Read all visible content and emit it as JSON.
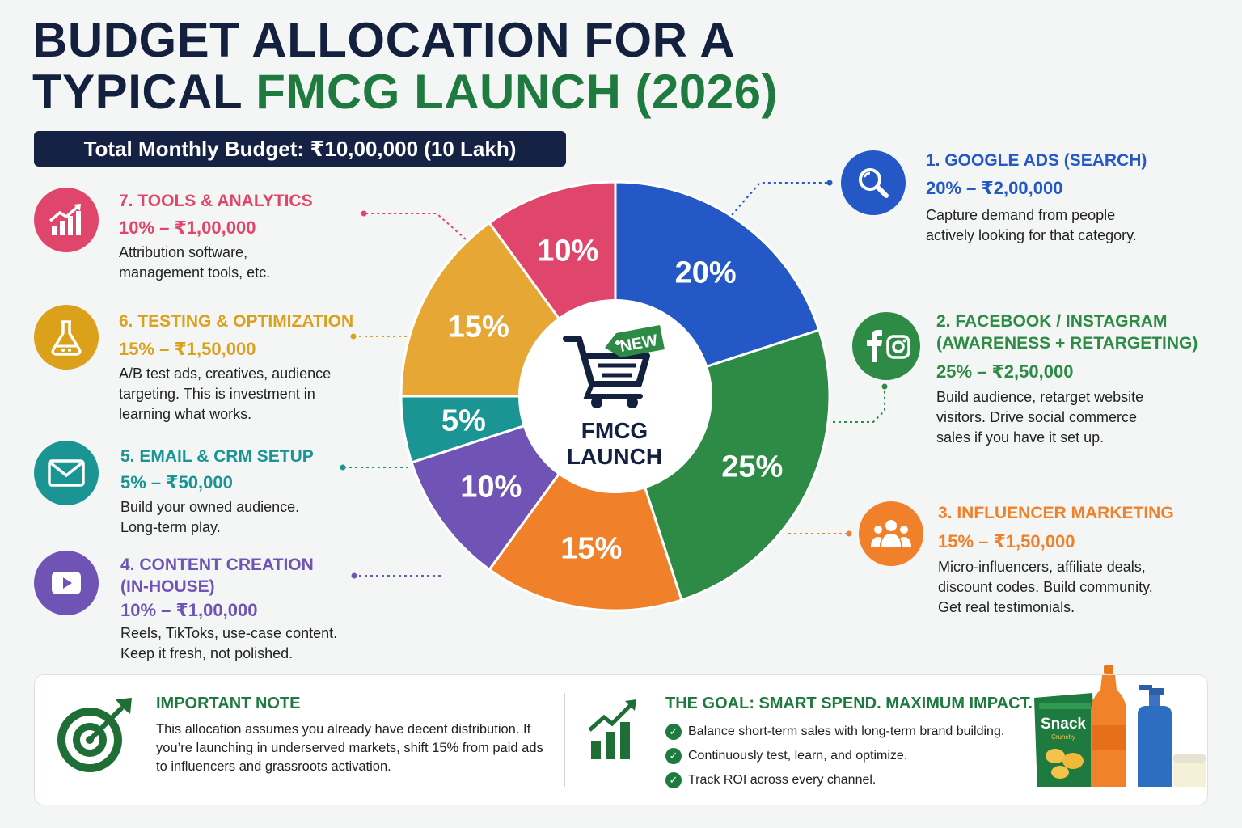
{
  "title": {
    "line1": "BUDGET ALLOCATION FOR A",
    "line2_prefix": "TYPICAL ",
    "line2_highlight": "FMCG LAUNCH (2026)"
  },
  "budget_bar": "Total Monthly Budget: ₹10,00,000 (10 Lakh)",
  "center": {
    "tag": "NEW",
    "line1": "FMCG",
    "line2": "LAUNCH"
  },
  "categories": {
    "google": {
      "title": "1. GOOGLE ADS (SEARCH)",
      "amount": "20% – ₹2,00,000",
      "desc": [
        "Capture demand from people",
        "actively looking for that category."
      ],
      "color": "#2458c6",
      "icon": "search-icon"
    },
    "facebook": {
      "title": [
        "2. FACEBOOK / INSTAGRAM",
        "(AWARENESS + RETARGETING)"
      ],
      "amount": "25% – ₹2,50,000",
      "desc": [
        "Build audience, retarget website",
        "visitors. Drive social commerce",
        "sales if you have it set up."
      ],
      "color": "#2e8b46",
      "icon": "facebook-instagram-icon"
    },
    "influencer": {
      "title": "3. INFLUENCER MARKETING",
      "amount": "15% – ₹1,50,000",
      "desc": [
        "Micro-influencers, affiliate deals,",
        "discount codes. Build community.",
        "Get real testimonials."
      ],
      "color": "#f0802a",
      "icon": "people-icon"
    },
    "content": {
      "title": [
        "4. CONTENT CREATION",
        "(IN-HOUSE)"
      ],
      "amount": "10% – ₹1,00,000",
      "desc": [
        "Reels, TikToks, use-case content.",
        "Keep it fresh, not polished."
      ],
      "color": "#6f54b5",
      "icon": "video-play-icon"
    },
    "email": {
      "title": "5. EMAIL & CRM SETUP",
      "amount": "5% – ₹50,000",
      "desc": [
        "Build your owned audience.",
        "Long-term play."
      ],
      "color": "#1b9593",
      "icon": "envelope-icon"
    },
    "testing": {
      "title": "6. TESTING & OPTIMIZATION",
      "amount": "15% – ₹1,50,000",
      "desc": [
        "A/B test ads, creatives, audience",
        "targeting. This is investment in",
        "learning what works."
      ],
      "color": "#dba11b",
      "icon": "flask-icon"
    },
    "tools": {
      "title": "7. TOOLS & ANALYTICS",
      "amount": "10% – ₹1,00,000",
      "desc": [
        "Attribution software,",
        "management tools, etc."
      ],
      "color": "#e0466c",
      "icon": "chart-growth-icon"
    }
  },
  "chart_data": {
    "type": "pie",
    "categories": [
      "Google Ads (Search)",
      "Facebook / Instagram",
      "Influencer Marketing",
      "Content Creation (In-house)",
      "Email & CRM Setup",
      "Testing & Optimization",
      "Tools & Analytics"
    ],
    "values": [
      20,
      25,
      15,
      10,
      5,
      15,
      10
    ],
    "labels": [
      "20%",
      "25%",
      "15%",
      "10%",
      "5%",
      "15%",
      "10%"
    ],
    "colors": [
      "#2458c6",
      "#2e8b46",
      "#f0802a",
      "#6f54b5",
      "#1b9593",
      "#e6a734",
      "#e0466c"
    ]
  },
  "note": {
    "title": "IMPORTANT NOTE",
    "text": "This allocation assumes you already have decent distribution. If you’re launching in underserved markets, shift 15% from paid ads to influencers and grassroots activation."
  },
  "goal": {
    "title": "THE GOAL: SMART SPEND. MAXIMUM IMPACT.",
    "items": [
      "Balance short-term sales with long-term brand building.",
      "Continuously test, learn, and optimize.",
      "Track ROI across every channel."
    ]
  },
  "product": {
    "snack_label": "Snack",
    "snack_sub": "Crunchy"
  }
}
